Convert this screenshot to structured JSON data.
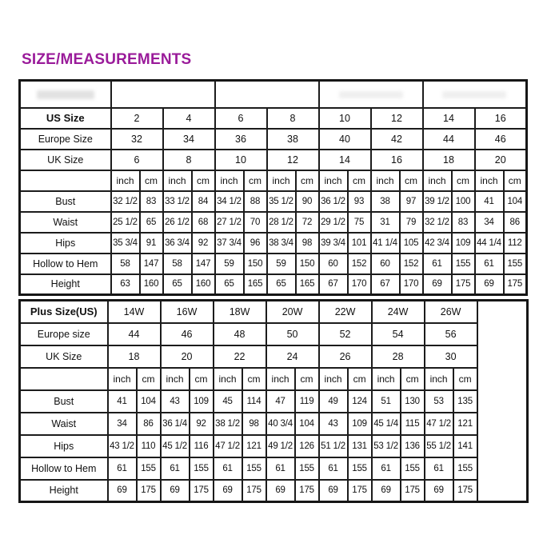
{
  "title": {
    "text": "SIZE/MEASUREMENTS",
    "color": "#9A1B9A"
  },
  "colors": {
    "border": "#1c1c1c",
    "background": "#ffffff",
    "text": "#111111"
  },
  "tables": [
    {
      "id": "standard",
      "has_group_header_row": true,
      "group_header_cells": [
        "",
        "",
        "",
        ""
      ],
      "size_rows": [
        {
          "label": "US Size",
          "bold": true,
          "values": [
            "2",
            "4",
            "6",
            "8",
            "10",
            "12",
            "14",
            "16"
          ]
        },
        {
          "label": "Europe Size",
          "bold": false,
          "values": [
            "32",
            "34",
            "36",
            "38",
            "40",
            "42",
            "44",
            "46"
          ]
        },
        {
          "label": "UK Size",
          "bold": false,
          "values": [
            "6",
            "8",
            "10",
            "12",
            "14",
            "16",
            "18",
            "20"
          ]
        }
      ],
      "unit_labels": {
        "inch": "inch",
        "cm": "cm"
      },
      "measurement_rows": [
        {
          "label": "Bust",
          "values_inch": [
            "32 1/2",
            "33 1/2",
            "34 1/2",
            "35 1/2",
            "36 1/2",
            "38",
            "39 1/2",
            "41"
          ],
          "values_cm": [
            "83",
            "84",
            "88",
            "90",
            "93",
            "97",
            "100",
            "104"
          ]
        },
        {
          "label": "Waist",
          "values_inch": [
            "25 1/2",
            "26 1/2",
            "27 1/2",
            "28 1/2",
            "29 1/2",
            "31",
            "32 1/2",
            "34"
          ],
          "values_cm": [
            "65",
            "68",
            "70",
            "72",
            "75",
            "79",
            "83",
            "86"
          ]
        },
        {
          "label": "Hips",
          "values_inch": [
            "35 3/4",
            "36 3/4",
            "37 3/4",
            "38 3/4",
            "39 3/4",
            "41 1/4",
            "42 3/4",
            "44 1/4"
          ],
          "values_cm": [
            "91",
            "92",
            "96",
            "98",
            "101",
            "105",
            "109",
            "112"
          ]
        },
        {
          "label": "Hollow to Hem",
          "values_inch": [
            "58",
            "58",
            "59",
            "59",
            "60",
            "60",
            "61",
            "61"
          ],
          "values_cm": [
            "147",
            "147",
            "150",
            "150",
            "152",
            "152",
            "155",
            "155"
          ]
        },
        {
          "label": "Height",
          "values_inch": [
            "63",
            "65",
            "65",
            "65",
            "67",
            "67",
            "69",
            "69"
          ],
          "values_cm": [
            "160",
            "160",
            "165",
            "165",
            "170",
            "170",
            "175",
            "175"
          ]
        }
      ],
      "trailing_empty_column": false,
      "layout": {
        "label_col_w": 114,
        "inch_col_w": 36,
        "cm_col_w": 29,
        "trailing_col_w": 0
      }
    },
    {
      "id": "plus",
      "has_group_header_row": false,
      "size_rows": [
        {
          "label": "Plus Size(US)",
          "bold": true,
          "values": [
            "14W",
            "16W",
            "18W",
            "20W",
            "22W",
            "24W",
            "26W"
          ]
        },
        {
          "label": "Europe size",
          "bold": false,
          "values": [
            "44",
            "46",
            "48",
            "50",
            "52",
            "54",
            "56"
          ]
        },
        {
          "label": "UK Size",
          "bold": false,
          "values": [
            "18",
            "20",
            "22",
            "24",
            "26",
            "28",
            "30"
          ]
        }
      ],
      "unit_labels": {
        "inch": "inch",
        "cm": "cm"
      },
      "measurement_rows": [
        {
          "label": "Bust",
          "values_inch": [
            "41",
            "43",
            "45",
            "47",
            "49",
            "51",
            "53"
          ],
          "values_cm": [
            "104",
            "109",
            "114",
            "119",
            "124",
            "130",
            "135"
          ]
        },
        {
          "label": "Waist",
          "values_inch": [
            "34",
            "36 1/4",
            "38 1/2",
            "40 3/4",
            "43",
            "45 1/4",
            "47 1/2"
          ],
          "values_cm": [
            "86",
            "92",
            "98",
            "104",
            "109",
            "115",
            "121"
          ]
        },
        {
          "label": "Hips",
          "values_inch": [
            "43 1/2",
            "45 1/2",
            "47 1/2",
            "49 1/2",
            "51 1/2",
            "53 1/2",
            "55 1/2"
          ],
          "values_cm": [
            "110",
            "116",
            "121",
            "126",
            "131",
            "136",
            "141"
          ]
        },
        {
          "label": "Hollow to Hem",
          "values_inch": [
            "61",
            "61",
            "61",
            "61",
            "61",
            "61",
            "61"
          ],
          "values_cm": [
            "155",
            "155",
            "155",
            "155",
            "155",
            "155",
            "155"
          ]
        },
        {
          "label": "Height",
          "values_inch": [
            "69",
            "69",
            "69",
            "69",
            "69",
            "69",
            "69"
          ],
          "values_cm": [
            "175",
            "175",
            "175",
            "175",
            "175",
            "175",
            "175"
          ]
        }
      ],
      "trailing_empty_column": true,
      "layout": {
        "label_col_w": 110,
        "inch_col_w": 36,
        "cm_col_w": 30,
        "trailing_col_w": 63
      }
    }
  ]
}
